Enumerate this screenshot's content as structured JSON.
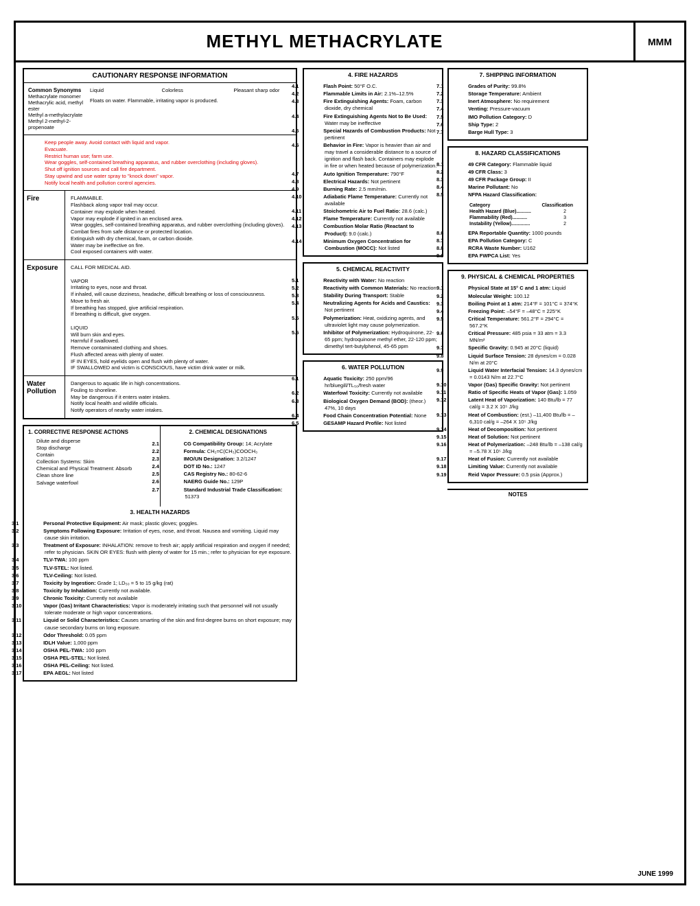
{
  "title": "METHYL METHACRYLATE",
  "code": "MMM",
  "footer_date": "JUNE 1999",
  "caution": {
    "heading": "CAUTIONARY RESPONSE INFORMATION",
    "synonyms_label": "Common Synonyms",
    "synonyms": [
      "Methacrylate monomer",
      "Methacrylic acid, methyl ester",
      "Methyl a-methylacrylate",
      "Methyl 2-methyl-2-propenoate"
    ],
    "props": {
      "state": "Liquid",
      "color": "Colorless",
      "odor": "Pleasant sharp odor",
      "floats": "Floats on water. Flammable, irritating vapor is produced."
    },
    "red_lines": [
      "Keep people away. Avoid contact with liquid and vapor.",
      "Evacuate.",
      "Restrict human use; farm use.",
      "Wear goggles, self-contained breathing apparatus, and rubber overclothing (including gloves).",
      "Shut off ignition sources and call fire department.",
      "Stay upwind and use water spray to \"knock down\" vapor.",
      "Notify local health and pollution control agencies."
    ],
    "fire": {
      "label": "Fire",
      "lines": [
        "FLAMMABLE.",
        "Flashback along vapor trail may occur.",
        "Container may explode when heated.",
        "Vapor may explode if ignited in an enclosed area.",
        "Wear goggles, self-contained breathing apparatus, and rubber overclothing (including gloves).",
        "Combat fires from safe distance or protected location.",
        "Extinguish with dry chemical, foam, or carbon dioxide.",
        "Water may be ineffective on fire.",
        "Cool exposed containers with water."
      ]
    },
    "exposure": {
      "label": "Exposure",
      "head": "CALL FOR MEDICAL AID.",
      "vapor_label": "VAPOR",
      "vapor": [
        "Irritating to eyes, nose and throat.",
        "If inhaled, will cause dizziness, headache, difficult breathing or loss of consciousness.",
        "Move to fresh air.",
        "If breathing has stopped, give artificial respiration.",
        "If breathing is difficult, give oxygen."
      ],
      "liquid_label": "LIQUID",
      "liquid": [
        "Will burn skin and eyes.",
        "Harmful if swallowed.",
        "Remove contaminated clothing and shoes.",
        "Flush affected areas with plenty of water.",
        "IF IN EYES, hold eyelids open and flush with plenty of water.",
        "IF SWALLOWED and victim is CONSCIOUS, have victim drink water or milk."
      ]
    },
    "water": {
      "label": "Water Pollution",
      "lines": [
        "Dangerous to aquatic life in high concentrations.",
        "Fouling to shoreline.",
        "May be dangerous if it enters water intakes.",
        "Notify local health and wildlife officials.",
        "Notify operators of nearby water intakes."
      ]
    }
  },
  "corrective": {
    "title": "1. CORRECTIVE RESPONSE ACTIONS",
    "lines": [
      "Dilute and disperse",
      "Stop discharge",
      "Contain",
      "Collection Systems: Skim",
      "Chemical and Physical Treatment: Absorb",
      "Clean shore line",
      "Salvage waterfowl"
    ]
  },
  "designations": {
    "title": "2. CHEMICAL DESIGNATIONS",
    "items": [
      {
        "n": "2.1",
        "lbl": "CG Compatibility Group:",
        "v": "14; Acrylate"
      },
      {
        "n": "2.2",
        "lbl": "Formula:",
        "v": "CH₂=C(CH₃)COOCH₃"
      },
      {
        "n": "2.3",
        "lbl": "IMO/UN Designation:",
        "v": "3.2/1247"
      },
      {
        "n": "2.4",
        "lbl": "DOT ID No.:",
        "v": "1247"
      },
      {
        "n": "2.5",
        "lbl": "CAS Registry No.:",
        "v": "80-62-6"
      },
      {
        "n": "2.6",
        "lbl": "NAERG Guide No.:",
        "v": "129P"
      },
      {
        "n": "2.7",
        "lbl": "Standard Industrial Trade Classification:",
        "v": "51373"
      }
    ]
  },
  "health": {
    "title": "3. HEALTH HAZARDS",
    "items": [
      {
        "n": "3.1",
        "lbl": "Personal Protective Equipment:",
        "v": "Air mask; plastic gloves; goggles."
      },
      {
        "n": "3.2",
        "lbl": "Symptoms Following Exposure:",
        "v": "Irritation of eyes, nose, and throat. Nausea and vomiting. Liquid may cause skin irritation."
      },
      {
        "n": "3.3",
        "lbl": "Treatment of Exposure:",
        "v": "INHALATION: remove to fresh air; apply artificial respiration and oxygen if needed; refer to physician. SKIN OR EYES: flush with plenty of water for 15 min.; refer to physician for eye exposure."
      },
      {
        "n": "3.4",
        "lbl": "TLV-TWA:",
        "v": "100 ppm"
      },
      {
        "n": "3.5",
        "lbl": "TLV-STEL:",
        "v": "Not listed."
      },
      {
        "n": "3.6",
        "lbl": "TLV-Ceiling:",
        "v": "Not listed."
      },
      {
        "n": "3.7",
        "lbl": "Toxicity by Ingestion:",
        "v": "Grade 1; LD₅₀ = 5 to 15 g/kg (rat)"
      },
      {
        "n": "3.8",
        "lbl": "Toxicity by Inhalation:",
        "v": "Currently not available."
      },
      {
        "n": "3.9",
        "lbl": "Chronic Toxicity:",
        "v": "Currently not available"
      },
      {
        "n": "3.10",
        "lbl": "Vapor (Gas) Irritant Characteristics:",
        "v": "Vapor is moderately irritating such that personnel will not usually tolerate moderate or high vapor concentrations."
      },
      {
        "n": "3.11",
        "lbl": "Liquid or Solid Characteristics:",
        "v": "Causes smarting of the skin and first-degree burns on short exposure; may cause secondary burns on long exposure."
      },
      {
        "n": "3.12",
        "lbl": "Odor Threshold:",
        "v": "0.05 ppm"
      },
      {
        "n": "3.13",
        "lbl": "IDLH Value:",
        "v": "1,000 ppm"
      },
      {
        "n": "3.14",
        "lbl": "OSHA PEL-TWA:",
        "v": "100 ppm"
      },
      {
        "n": "3.15",
        "lbl": "OSHA PEL-STEL:",
        "v": "Not listed."
      },
      {
        "n": "3.16",
        "lbl": "OSHA PEL-Ceiling:",
        "v": "Not listed."
      },
      {
        "n": "3.17",
        "lbl": "EPA AEGL:",
        "v": "Not listed"
      }
    ]
  },
  "fire_haz": {
    "title": "4. FIRE HAZARDS",
    "items": [
      {
        "n": "4.1",
        "lbl": "Flash Point:",
        "v": "50°F O.C."
      },
      {
        "n": "4.2",
        "lbl": "Flammable Limits in Air:",
        "v": "2.1%–12.5%"
      },
      {
        "n": "4.3",
        "lbl": "Fire Extinguishing Agents:",
        "v": "Foam, carbon dioxide, dry chemical"
      },
      {
        "n": "4.4",
        "lbl": "Fire Extinguishing Agents Not to Be Used:",
        "v": "Water may be ineffective"
      },
      {
        "n": "4.5",
        "lbl": "Special Hazards of Combustion Products:",
        "v": "Not pertinent"
      },
      {
        "n": "4.6",
        "lbl": "Behavior in Fire:",
        "v": "Vapor is heavier than air and may travel a considerable distance to a source of ignition and flash back. Containers may explode in fire or when heated because of polymerization."
      },
      {
        "n": "4.7",
        "lbl": "Auto Ignition Temperature:",
        "v": "790°F"
      },
      {
        "n": "4.8",
        "lbl": "Electrical Hazards:",
        "v": "Not pertinent"
      },
      {
        "n": "4.9",
        "lbl": "Burning Rate:",
        "v": "2.5 mm/min."
      },
      {
        "n": "4.10",
        "lbl": "Adiabatic Flame Temperature:",
        "v": "Currently not available"
      },
      {
        "n": "4.11",
        "lbl": "Stoichometric Air to Fuel Ratio:",
        "v": "28.6 (calc.)"
      },
      {
        "n": "4.12",
        "lbl": "Flame Temperature:",
        "v": "Currently not available"
      },
      {
        "n": "4.13",
        "lbl": "Combustion Molar Ratio (Reactant to Product):",
        "v": "9.0 (calc.)"
      },
      {
        "n": "4.14",
        "lbl": "Minimum Oxygen Concentration for Combustion (MOCC):",
        "v": "Not listed"
      }
    ]
  },
  "reactivity": {
    "title": "5. CHEMICAL REACTIVITY",
    "items": [
      {
        "n": "5.1",
        "lbl": "Reactivity with Water:",
        "v": "No reaction"
      },
      {
        "n": "5.2",
        "lbl": "Reactivity with Common Materials:",
        "v": "No reaction"
      },
      {
        "n": "5.3",
        "lbl": "Stability During Transport:",
        "v": "Stable"
      },
      {
        "n": "5.4",
        "lbl": "Neutralizing Agents for Acids and Caustics:",
        "v": "Not pertinent"
      },
      {
        "n": "5.5",
        "lbl": "Polymerization:",
        "v": "Heat, oxidizing agents, and ultraviolet light may cause polymerization."
      },
      {
        "n": "5.6",
        "lbl": "Inhibitor of Polymerization:",
        "v": "Hydroquinone, 22-65 ppm; hydroquinone methyl ether, 22-120 ppm; dimethyl tert-butylphenol, 45-65 ppm"
      }
    ]
  },
  "pollution": {
    "title": "6. WATER POLLUTION",
    "items": [
      {
        "n": "6.1",
        "lbl": "Aquatic Toxicity:",
        "v": "250 ppm/96 hr/bluegill/TL₅₀/fresh water"
      },
      {
        "n": "6.2",
        "lbl": "Waterfowl Toxicity:",
        "v": "Currently not available"
      },
      {
        "n": "6.3",
        "lbl": "Biological Oxygen Demand (BOD):",
        "v": "(theor.) 47%, 10 days"
      },
      {
        "n": "6.4",
        "lbl": "Food Chain Concentration Potential:",
        "v": "None"
      },
      {
        "n": "6.5",
        "lbl": "GESAMP Hazard Profile:",
        "v": "Not listed"
      }
    ]
  },
  "shipping": {
    "title": "7. SHIPPING INFORMATION",
    "items": [
      {
        "n": "7.1",
        "lbl": "Grades of Purity:",
        "v": "99.8%"
      },
      {
        "n": "7.2",
        "lbl": "Storage Temperature:",
        "v": "Ambient"
      },
      {
        "n": "7.3",
        "lbl": "Inert Atmosphere:",
        "v": "No requirement"
      },
      {
        "n": "7.4",
        "lbl": "Venting:",
        "v": "Pressure-vacuum"
      },
      {
        "n": "7.5",
        "lbl": "IMO Pollution Category:",
        "v": "D"
      },
      {
        "n": "7.6",
        "lbl": "Ship Type:",
        "v": "2"
      },
      {
        "n": "7.7",
        "lbl": "Barge Hull Type:",
        "v": "3"
      }
    ]
  },
  "hazclass": {
    "title": "8. HAZARD CLASSIFICATIONS",
    "items": [
      {
        "n": "8.1",
        "lbl": "49 CFR Category:",
        "v": "Flammable liquid"
      },
      {
        "n": "8.2",
        "lbl": "49 CFR Class:",
        "v": "3"
      },
      {
        "n": "8.3",
        "lbl": "49 CFR Package Group:",
        "v": "II"
      },
      {
        "n": "8.4",
        "lbl": "Marine Pollutant:",
        "v": "No"
      },
      {
        "n": "8.5",
        "lbl": "NFPA Hazard Classification:",
        "v": ""
      }
    ],
    "nfpa": {
      "cat_label": "Category",
      "class_label": "Classification",
      "rows": [
        {
          "c": "Health Hazard (Blue)...........",
          "v": "2"
        },
        {
          "c": "Flammability (Red)...........",
          "v": "3"
        },
        {
          "c": "Instability (Yellow)..............",
          "v": "2"
        }
      ]
    },
    "items2": [
      {
        "n": "8.6",
        "lbl": "EPA Reportable Quantity:",
        "v": "1000 pounds"
      },
      {
        "n": "8.7",
        "lbl": "EPA Pollution Category:",
        "v": "C"
      },
      {
        "n": "8.8",
        "lbl": "RCRA Waste Number:",
        "v": "U162"
      },
      {
        "n": "8.9",
        "lbl": "EPA FWPCA List:",
        "v": "Yes"
      }
    ]
  },
  "physical": {
    "title": "9. PHYSICAL & CHEMICAL PROPERTIES",
    "items": [
      {
        "n": "9.1",
        "lbl": "Physical State at 15° C and 1 atm:",
        "v": "Liquid"
      },
      {
        "n": "9.2",
        "lbl": "Molecular Weight:",
        "v": "100.12"
      },
      {
        "n": "9.3",
        "lbl": "Boiling Point at 1 atm:",
        "v": "214°F = 101°C = 374°K"
      },
      {
        "n": "9.4",
        "lbl": "Freezing Point:",
        "v": "–54°F = –48°C = 225°K"
      },
      {
        "n": "9.5",
        "lbl": "Critical Temperature:",
        "v": "561.2°F = 294°C = 567.2°K"
      },
      {
        "n": "9.6",
        "lbl": "Critical Pressure:",
        "v": "485 psia = 33 atm = 3.3 MN/m²"
      },
      {
        "n": "9.7",
        "lbl": "Specific Gravity:",
        "v": "0.945 at 20°C (liquid)"
      },
      {
        "n": "9.8",
        "lbl": "Liquid Surface Tension:",
        "v": "28 dynes/cm = 0.028 N/m at 20°C"
      },
      {
        "n": "9.9",
        "lbl": "Liquid Water Interfacial Tension:",
        "v": "14.3 dynes/cm = 0.0143 N/m at 22.7°C"
      },
      {
        "n": "9.10",
        "lbl": "Vapor (Gas) Specific Gravity:",
        "v": "Not pertinent"
      },
      {
        "n": "9.11",
        "lbl": "Ratio of Specific Heats of Vapor (Gas):",
        "v": "1.059"
      },
      {
        "n": "9.12",
        "lbl": "Latent Heat of Vaporization:",
        "v": "140 Btu/lb = 77 cal/g = 3.2 X 10⁵ J/kg"
      },
      {
        "n": "9.13",
        "lbl": "Heat of Combustion:",
        "v": "(est.) –11,400 Btu/lb = –6,310 cal/g = –264 X 10⁵ J/kg"
      },
      {
        "n": "9.14",
        "lbl": "Heat of Decomposition:",
        "v": "Not pertinent"
      },
      {
        "n": "9.15",
        "lbl": "Heat of Solution:",
        "v": "Not pertinent"
      },
      {
        "n": "9.16",
        "lbl": "Heat of Polymerization:",
        "v": "–248 Btu/lb = –138 cal/g = –5.78 X 10⁵ J/kg"
      },
      {
        "n": "9.17",
        "lbl": "Heat of Fusion:",
        "v": "Currently not available"
      },
      {
        "n": "9.18",
        "lbl": "Limiting Value:",
        "v": "Currently not available"
      },
      {
        "n": "9.19",
        "lbl": "Reid Vapor Pressure:",
        "v": "0.5 psia (Approx.)"
      }
    ]
  },
  "notes_label": "NOTES"
}
